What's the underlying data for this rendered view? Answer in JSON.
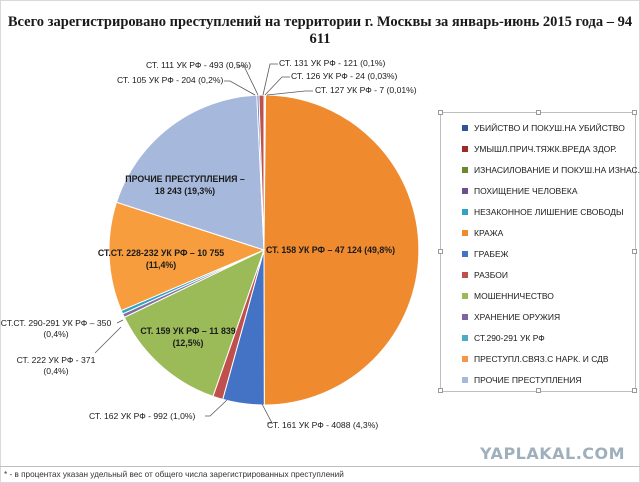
{
  "title": "Всего зарегистрировано преступлений на территории г. Москвы за январь-июнь 2015 года – 94 611",
  "chart_data": {
    "type": "pie",
    "total": 94611,
    "slices": [
      {
        "name": "УБИЙСТВО И ПОКУШ.НА УБИЙСТВО",
        "value": 121,
        "color": "#2e5597",
        "label": "СТ. 131 УК РФ - 121 (0,1%)"
      },
      {
        "name": "УМЫШЛ.ПРИЧ.ТЯЖК.ВРЕДА ЗДОР.",
        "value": 24,
        "color": "#9e2a2a",
        "label": "СТ. 126 УК РФ - 24 (0,03%)"
      },
      {
        "name": "ИЗНАСИЛОВАНИЕ И ПОКУШ.НА ИЗНАС.",
        "value": 7,
        "color": "#6a8a2a",
        "label": "СТ. 127 УК РФ - 7 (0,01%)"
      },
      {
        "name": "ПОХИЩЕНИЕ ЧЕЛОВЕКА",
        "value": 47124,
        "color": "#ef8a2e",
        "label": "СТ. 158 УК РФ – 47 124 (49,8%)"
      },
      {
        "name": "НЕЗАКОННОЕ ЛИШЕНИЕ СВОБОДЫ",
        "value": 4088,
        "color": "#4472c4",
        "label": "СТ. 161 УК РФ - 4088 (4,3%)"
      },
      {
        "name": "КРАЖА",
        "value": 992,
        "color": "#c0504d",
        "label": "СТ. 162 УК РФ - 992 (1,0%)"
      },
      {
        "name": "ГРАБЕЖ",
        "value": 11839,
        "color": "#9bbb59",
        "label": "СТ. 159 УК РФ – 11 839 (12,5%)"
      },
      {
        "name": "РАЗБОИ",
        "value": 371,
        "color": "#7f6fa3",
        "label": "СТ. 222 УК РФ - 371 (0,4%)"
      },
      {
        "name": "МОШЕННИЧЕСТВО",
        "value": 350,
        "color": "#31a2c2",
        "label": "СТ.СТ. 290-291 УК РФ – 350 (0,4%)"
      },
      {
        "name": "ХРАНЕНИЕ ОРУЖИЯ",
        "value": 10755,
        "color": "#f79d3d",
        "label": "СТ.СТ. 228-232 УК РФ – 10 755 (11,4%)"
      },
      {
        "name": "СТ.290-291 УК РФ",
        "value": 18243,
        "color": "#a6b9dc",
        "label": "ПРОЧИЕ ПРЕСТУПЛЕНИЯ – 18 243 (19,3%)"
      },
      {
        "name": "ПРЕСТУПЛ.СВЯЗ.С НАРК. И СДВ",
        "value": 204,
        "color": "#5b84c8",
        "label": "СТ. 105 УК РФ - 204 (0,2%)"
      },
      {
        "name": "ПРОЧИЕ ПРЕСТУПЛЕНИЯ",
        "value": 493,
        "color": "#c0504d",
        "label": "СТ. 111 УК РФ - 493 (0,5%)"
      }
    ],
    "legend": {
      "position": "right",
      "items": [
        {
          "label": "УБИЙСТВО И ПОКУШ.НА УБИЙСТВО",
          "color": "#2e5597"
        },
        {
          "label": "УМЫШЛ.ПРИЧ.ТЯЖК.ВРЕДА ЗДОР.",
          "color": "#9e2a2a"
        },
        {
          "label": "ИЗНАСИЛОВАНИЕ И ПОКУШ.НА ИЗНАС.",
          "color": "#6a8a2a"
        },
        {
          "label": "ПОХИЩЕНИЕ ЧЕЛОВЕКА",
          "color": "#6b4f8e"
        },
        {
          "label": "НЕЗАКОННОЕ ЛИШЕНИЕ СВОБОДЫ",
          "color": "#31a2c2"
        },
        {
          "label": "КРАЖА",
          "color": "#ef8a2e"
        },
        {
          "label": "ГРАБЕЖ",
          "color": "#4472c4"
        },
        {
          "label": "РАЗБОИ",
          "color": "#c0504d"
        },
        {
          "label": "МОШЕННИЧЕСТВО",
          "color": "#9bbb59"
        },
        {
          "label": "ХРАНЕНИЕ ОРУЖИЯ",
          "color": "#8064a2"
        },
        {
          "label": "СТ.290-291 УК РФ",
          "color": "#4bacc6"
        },
        {
          "label": "ПРЕСТУПЛ.СВЯЗ.С НАРК. И СДВ",
          "color": "#f79646"
        },
        {
          "label": "ПРОЧИЕ ПРЕСТУПЛЕНИЯ",
          "color": "#a6b9dc"
        }
      ]
    }
  },
  "labels": {
    "st131": "СТ. 131 УК РФ - 121 (0,1%)",
    "st126": "СТ. 126 УК РФ - 24 (0,03%)",
    "st127": "СТ. 127 УК РФ - 7 (0,01%)",
    "st111": "СТ. 111 УК РФ -  493 (0,5%)",
    "st105": "СТ. 105 УК РФ - 204 (0,2%)",
    "prochie_1": "ПРОЧИЕ ПРЕСТУПЛЕНИЯ –",
    "prochie_2": "18 243   (19,3%)",
    "st158": "СТ. 158 УК РФ – 47 124 (49,8%)",
    "st228_1": "СТ.СТ. 228-232 УК РФ – 10 755",
    "st228_2": "(11,4%)",
    "st290_1": "СТ.СТ. 290-291 УК РФ – 350",
    "st290_2": "(0,4%)",
    "st159_1": "СТ. 159 УК РФ – 11 839",
    "st159_2": "(12,5%)",
    "st222_1": "СТ. 222 УК РФ - 371",
    "st222_2": "(0,4%)",
    "st162": "СТ. 162 УК РФ - 992 (1,0%)",
    "st161": "СТ. 161 УК РФ - 4088 (4,3%)"
  },
  "watermark": "YAPLAKAL.COM",
  "footnote": "* - в процентах указан удельный вес от общего числа зарегистрированных преступлений"
}
